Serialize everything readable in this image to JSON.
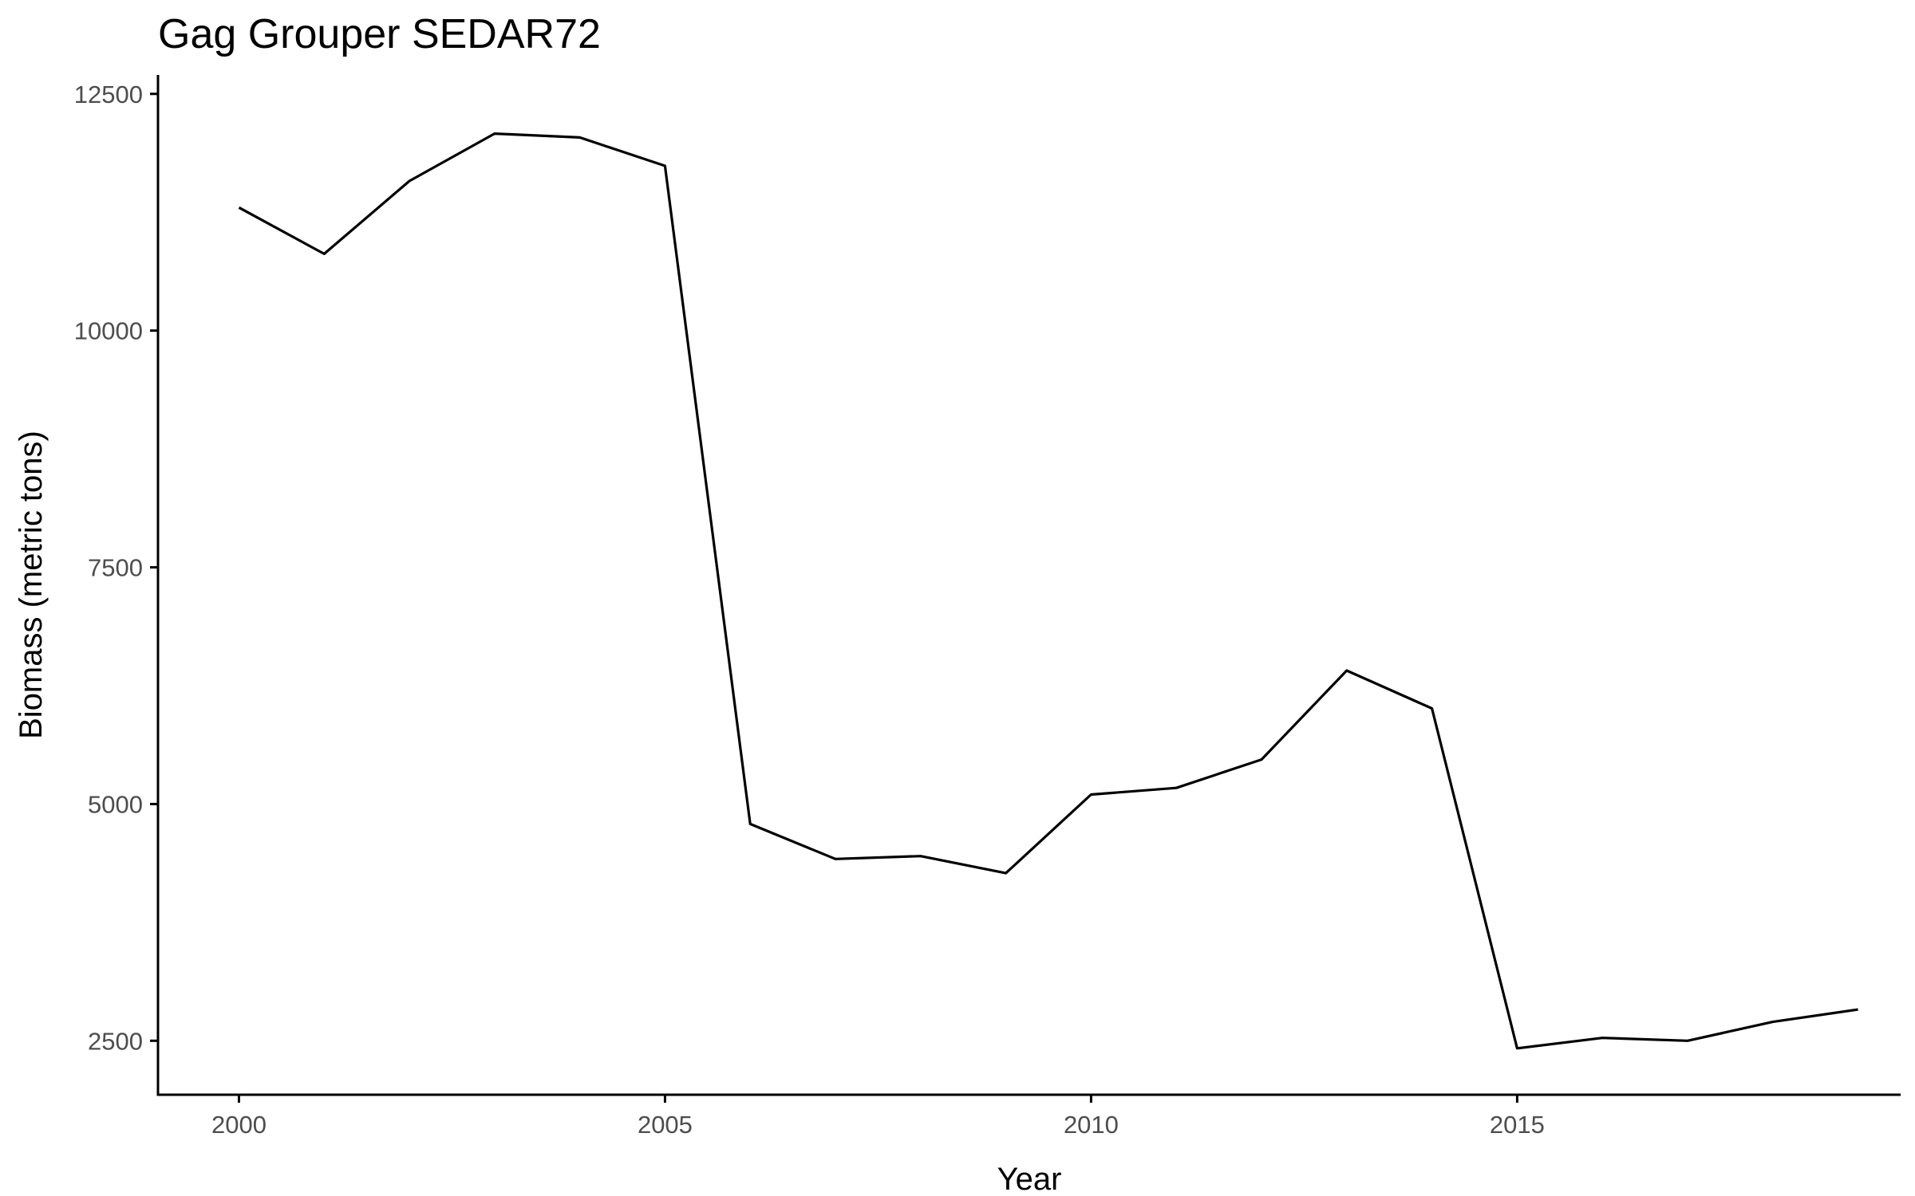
{
  "chart_data": {
    "type": "line",
    "title": "Gag Grouper SEDAR72",
    "xlabel": "Year",
    "ylabel": "Biomass (metric tons)",
    "xlim": [
      1999.05,
      2019.5
    ],
    "ylim": [
      1930,
      12700
    ],
    "x_ticks": [
      2000,
      2005,
      2010,
      2015
    ],
    "y_ticks": [
      2500,
      5000,
      7500,
      10000,
      12500
    ],
    "grid": false,
    "legend": "none",
    "line_color": "#000000",
    "x": [
      2000,
      2001,
      2002,
      2003,
      2004,
      2005,
      2006,
      2007,
      2008,
      2009,
      2010,
      2011,
      2012,
      2013,
      2014,
      2015,
      2016,
      2017,
      2018,
      2019
    ],
    "y": [
      11300,
      10810,
      11580,
      12080,
      12040,
      11740,
      4790,
      4420,
      4450,
      4270,
      5100,
      5170,
      5470,
      6410,
      6010,
      2420,
      2530,
      2500,
      2700,
      2830
    ]
  }
}
